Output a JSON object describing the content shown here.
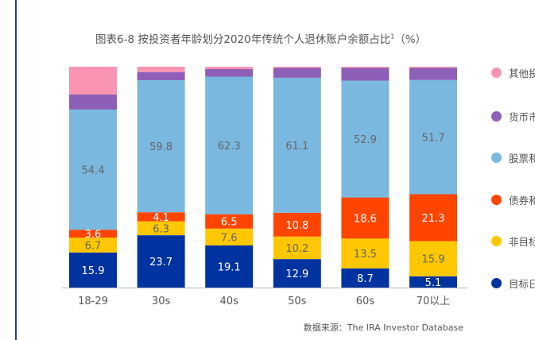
{
  "chart_data": {
    "type": "bar",
    "stacked": true,
    "title": "图表6-8 按投资者年龄划分2020年传统个人退休账户余额占比",
    "title_sup": "1",
    "title_unit": "（%）",
    "categories": [
      "18-29",
      "30s",
      "40s",
      "50s",
      "60s",
      "70以上"
    ],
    "ylim": [
      0,
      100
    ],
    "grid": false,
    "legend_position": "right",
    "series": [
      {
        "name": "目标日",
        "color": "#0033a0",
        "values": [
          15.9,
          23.7,
          19.1,
          12.9,
          8.7,
          5.1
        ],
        "labeled": true
      },
      {
        "name": "非目标",
        "color": "#ffc700",
        "values": [
          6.7,
          6.3,
          7.6,
          10.2,
          13.5,
          15.9
        ],
        "labeled": true
      },
      {
        "name": "债券和",
        "color": "#ff4500",
        "values": [
          3.6,
          4.1,
          6.5,
          10.8,
          18.6,
          21.3
        ],
        "labeled": true
      },
      {
        "name": "股票和",
        "color": "#7ab8e0",
        "values": [
          54.4,
          59.8,
          62.3,
          61.1,
          52.9,
          51.7
        ],
        "labeled": true
      },
      {
        "name": "货币市",
        "color": "#8e5fb8",
        "values": [
          6.8,
          3.6,
          3.5,
          4.5,
          5.8,
          5.5
        ],
        "labeled": false
      },
      {
        "name": "其他投",
        "color": "#f994b2",
        "values": [
          12.6,
          2.5,
          1.0,
          0.5,
          0.5,
          0.5
        ],
        "labeled": false
      }
    ]
  },
  "source": "数据来源：The IRA Investor Database"
}
